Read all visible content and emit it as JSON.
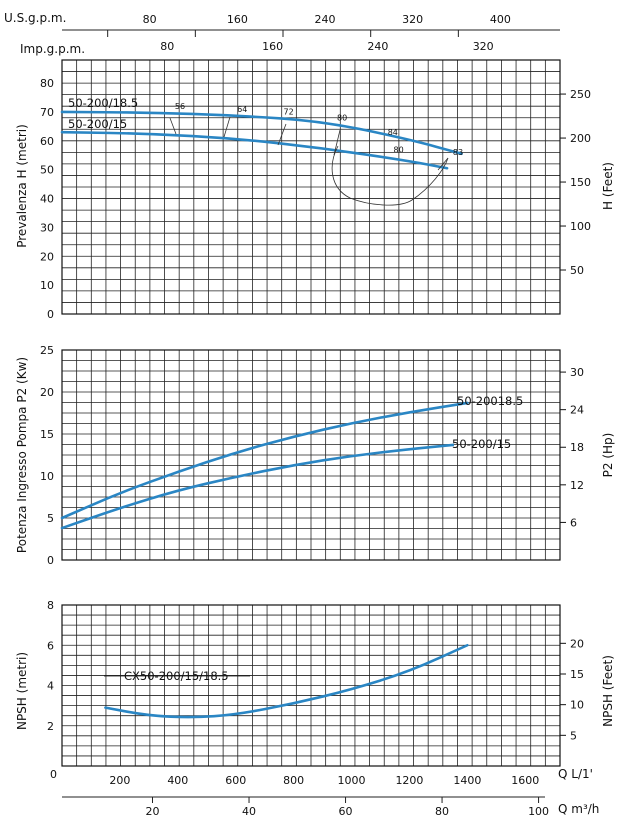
{
  "top_axes": {
    "usgpm": {
      "label": "U.S.g.p.m.",
      "ticks": [
        80,
        160,
        240,
        320,
        400
      ]
    },
    "impgpm": {
      "label": "Imp.g.p.m.",
      "ticks": [
        80,
        160,
        240,
        320
      ]
    }
  },
  "bottom_axes": {
    "lmin": {
      "label": "Q  L/1'",
      "ticks": [
        200,
        400,
        600,
        800,
        1000,
        1200,
        1400,
        1600
      ],
      "origin_label": "0"
    },
    "m3h": {
      "label": "Q  m³/h",
      "ticks": [
        20,
        40,
        60,
        80,
        100
      ]
    }
  },
  "colors": {
    "curve": "#2a86c4",
    "grid": "#222222",
    "efficiency": "#333333"
  },
  "chart_data": [
    {
      "type": "line",
      "name": "head",
      "ylabel": "Prevalenza H (metri)",
      "ylabel_right": "H (Feet)",
      "xlim": [
        0,
        1720
      ],
      "ylim": [
        0,
        88
      ],
      "yticks": [
        0,
        10,
        20,
        30,
        40,
        50,
        60,
        70,
        80
      ],
      "yticks_right": [
        50,
        100,
        150,
        200,
        250
      ],
      "series": [
        {
          "name": "50-200/18.5",
          "x": [
            0,
            300,
            600,
            900,
            1200,
            1380
          ],
          "y": [
            70,
            69.8,
            68.8,
            66.8,
            60.5,
            55.5
          ]
        },
        {
          "name": "50-200/15",
          "x": [
            0,
            300,
            600,
            900,
            1200,
            1330
          ],
          "y": [
            63,
            62.5,
            60.8,
            57.5,
            53,
            50.5
          ]
        }
      ],
      "efficiency_labels": [
        {
          "label": "56",
          "x": 390,
          "y": 70
        },
        {
          "label": "64",
          "x": 605,
          "y": 69
        },
        {
          "label": "72",
          "x": 765,
          "y": 68
        },
        {
          "label": "80",
          "x": 950,
          "y": 66
        },
        {
          "label": "84",
          "x": 1125,
          "y": 61
        },
        {
          "label": "83",
          "x": 1350,
          "y": 54
        },
        {
          "label": "80",
          "x": 1145,
          "y": 55
        }
      ]
    },
    {
      "type": "line",
      "name": "power",
      "ylabel": "Potenza Ingresso Pompa P2 (Kw)",
      "ylabel_right": "P2 (Hp)",
      "xlim": [
        0,
        1720
      ],
      "ylim": [
        0,
        25
      ],
      "yticks": [
        0,
        5,
        10,
        15,
        20,
        25
      ],
      "yticks_right": [
        6,
        12,
        18,
        24,
        30
      ],
      "series": [
        {
          "name": "50-20018.5",
          "x": [
            0,
            200,
            400,
            600,
            800,
            1000,
            1200,
            1400
          ],
          "y": [
            5,
            8,
            10.5,
            12.8,
            14.7,
            16.3,
            17.6,
            18.7
          ]
        },
        {
          "name": "50-200/15",
          "x": [
            0,
            200,
            400,
            600,
            800,
            1000,
            1200,
            1350
          ],
          "y": [
            3.8,
            6.2,
            8.3,
            9.9,
            11.3,
            12.4,
            13.2,
            13.7
          ]
        }
      ]
    },
    {
      "type": "line",
      "name": "npsh",
      "ylabel": "NPSH (metri)",
      "ylabel_right": "NPSH (Feet)",
      "xlim": [
        0,
        1720
      ],
      "ylim": [
        0,
        8
      ],
      "yticks": [
        2,
        4,
        6,
        8
      ],
      "yticks_right": [
        5,
        10,
        15,
        20
      ],
      "series": [
        {
          "name": "CX50-200/15/18.5",
          "x": [
            150,
            300,
            450,
            600,
            800,
            1000,
            1200,
            1400
          ],
          "y": [
            2.9,
            2.5,
            2.4,
            2.55,
            3.1,
            3.8,
            4.7,
            6.0
          ]
        }
      ]
    }
  ]
}
